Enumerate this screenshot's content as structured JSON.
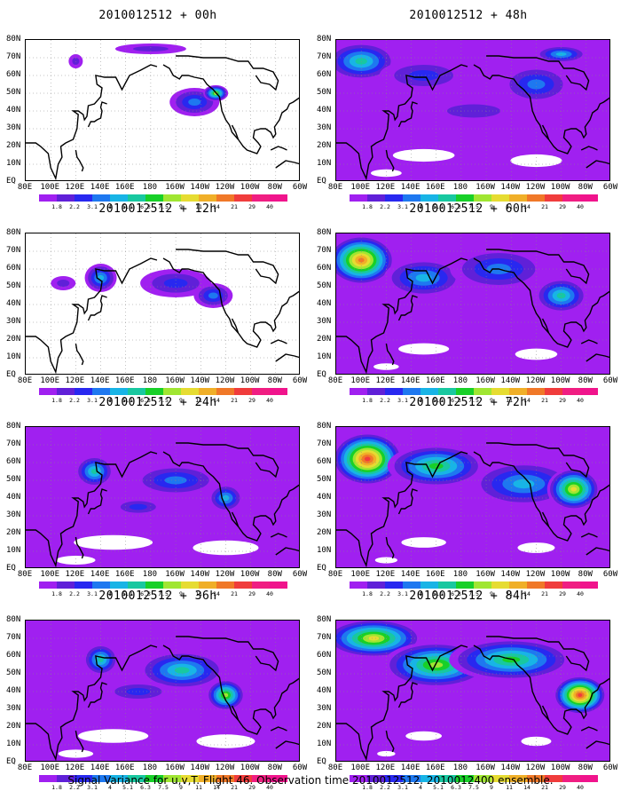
{
  "panels": [
    {
      "title": "2010012512 + 00h",
      "level": 0.15
    },
    {
      "title": "2010012512 + 48h",
      "level": 0.65
    },
    {
      "title": "2010012512 + 12h",
      "level": 0.3
    },
    {
      "title": "2010012512 + 60h",
      "level": 0.78
    },
    {
      "title": "2010012512 + 24h",
      "level": 0.45
    },
    {
      "title": "2010012512 + 72h",
      "level": 0.85
    },
    {
      "title": "2010012512 + 36h",
      "level": 0.55
    },
    {
      "title": "2010012512 + 84h",
      "level": 0.95
    }
  ],
  "map": {
    "lat_labels": [
      "80N",
      "70N",
      "60N",
      "50N",
      "40N",
      "30N",
      "20N",
      "10N",
      "EQ"
    ],
    "lon_labels": [
      "80E",
      "100E",
      "120E",
      "140E",
      "160E",
      "180",
      "160W",
      "140W",
      "120W",
      "100W",
      "80W",
      "60W"
    ]
  },
  "colorbar": {
    "labels": [
      "1.8",
      "2.2",
      "3.1",
      "4",
      "5.1",
      "6.3",
      "7.5",
      "9",
      "11",
      "14",
      "21",
      "29",
      "40"
    ],
    "colors": [
      "#a020f0",
      "#6020d8",
      "#2828f0",
      "#1e78f0",
      "#18b4e6",
      "#18c8a0",
      "#18d028",
      "#a0e632",
      "#e6dc32",
      "#f0af28",
      "#f07828",
      "#f03c3c",
      "#f01e82"
    ]
  },
  "footer": "Signal Variance for u,v,T. Flight 46. Observation time 2010012512. 2010012400 ensemble."
}
